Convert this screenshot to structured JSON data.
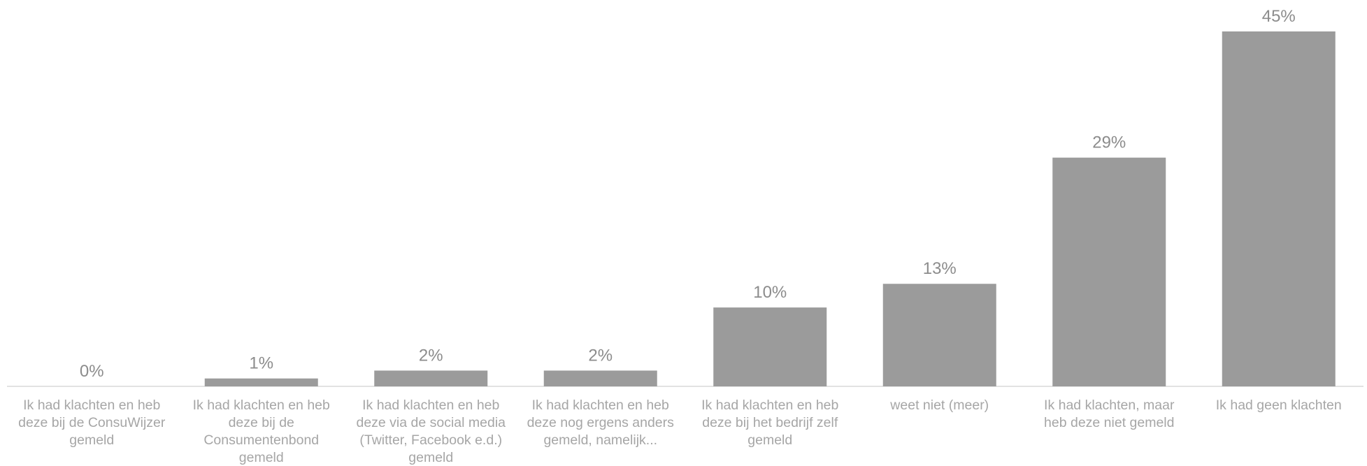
{
  "chart_data": {
    "type": "bar",
    "title": "",
    "xlabel": "",
    "ylabel": "",
    "ylim": [
      0,
      45
    ],
    "value_format": "percent",
    "grid": false,
    "legend": "none",
    "bar_color": "#9b9b9b",
    "categories": [
      [
        "Ik had klachten en heb",
        "deze bij de ConsuWijzer",
        "gemeld"
      ],
      [
        "Ik had klachten en heb",
        "deze bij de",
        "Consumentenbond",
        "gemeld"
      ],
      [
        "Ik had klachten en heb",
        "deze via de social media",
        "(Twitter, Facebook e.d.)",
        "gemeld"
      ],
      [
        "Ik had klachten en heb",
        "deze nog ergens anders",
        "gemeld, namelijk..."
      ],
      [
        "Ik had klachten en heb",
        "deze bij het bedrijf zelf",
        "gemeld"
      ],
      [
        "weet niet (meer)"
      ],
      [
        "Ik had klachten, maar",
        "heb deze niet gemeld"
      ],
      [
        "Ik had geen klachten"
      ]
    ],
    "values": [
      0,
      1,
      2,
      2,
      10,
      13,
      29,
      45
    ],
    "data_labels": [
      "0%",
      "1%",
      "2%",
      "2%",
      "10%",
      "13%",
      "29%",
      "45%"
    ]
  }
}
